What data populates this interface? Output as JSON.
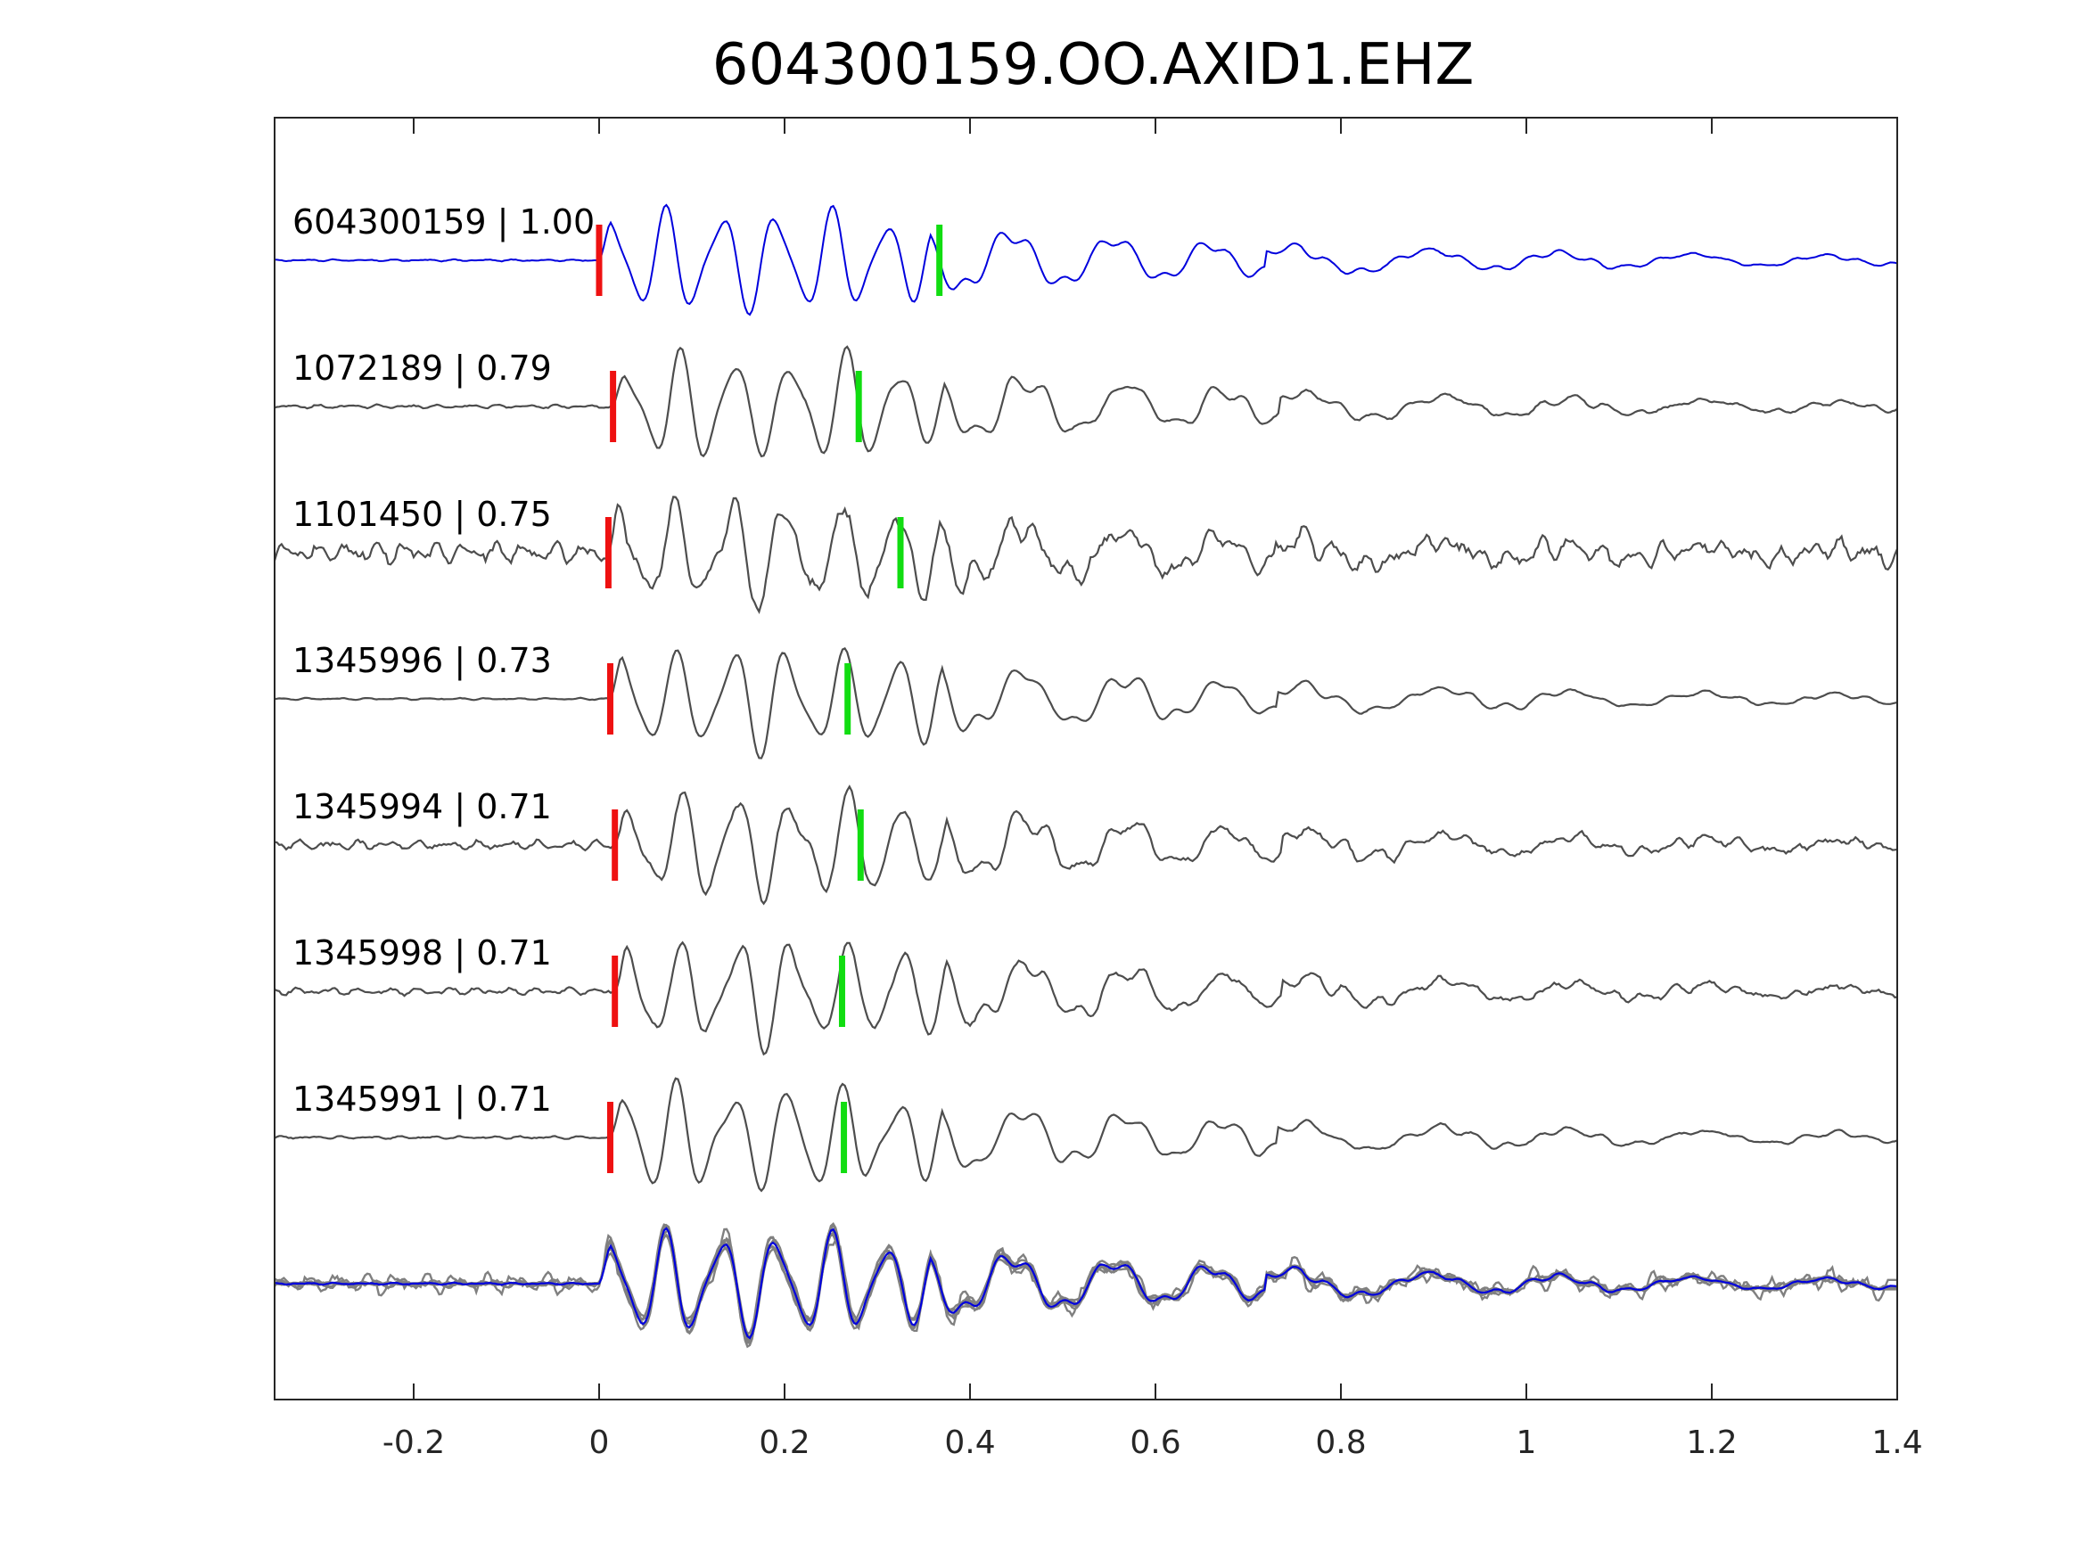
{
  "chart_data": {
    "type": "line",
    "title": "604300159.OO.AXID1.EHZ",
    "xlabel": "",
    "ylabel": "",
    "xlim": [
      -0.35,
      1.4
    ],
    "x_ticks": [
      -0.2,
      0,
      0.2,
      0.4,
      0.6,
      0.8,
      1,
      1.2,
      1.4
    ],
    "x_tick_labels": [
      "-0.2",
      "0",
      "0.2",
      "0.4",
      "0.6",
      "0.8",
      "1",
      "1.2",
      "1.4"
    ],
    "y_ticks_visible": false,
    "grid": false,
    "legend": "none",
    "colors": {
      "template": "#0000dd",
      "match": "#4d4d4d",
      "overlay_match": "#808080",
      "p_pick": "#ee1111",
      "s_pick": "#11dd11",
      "axes": "#262626"
    },
    "series": [
      {
        "id": "604300159",
        "label": "604300159 | 1.00",
        "cc": 1.0,
        "p_pick": 0.0,
        "s_pick": 0.367,
        "noise": 0.02,
        "template": true
      },
      {
        "id": "1072189",
        "label": "1072189 | 0.79",
        "cc": 0.79,
        "p_pick": 0.015,
        "s_pick": 0.28,
        "noise": 0.04,
        "template": false
      },
      {
        "id": "1101450",
        "label": "1101450 | 0.75",
        "cc": 0.75,
        "p_pick": 0.01,
        "s_pick": 0.325,
        "noise": 0.22,
        "template": false
      },
      {
        "id": "1345996",
        "label": "1345996 | 0.73",
        "cc": 0.73,
        "p_pick": 0.012,
        "s_pick": 0.268,
        "noise": 0.02,
        "template": false
      },
      {
        "id": "1345994",
        "label": "1345994 | 0.71",
        "cc": 0.71,
        "p_pick": 0.017,
        "s_pick": 0.282,
        "noise": 0.1,
        "template": false
      },
      {
        "id": "1345998",
        "label": "1345998 | 0.71",
        "cc": 0.71,
        "p_pick": 0.017,
        "s_pick": 0.262,
        "noise": 0.08,
        "template": false
      },
      {
        "id": "1345991",
        "label": "1345991 | 0.71",
        "cc": 0.71,
        "p_pick": 0.012,
        "s_pick": 0.264,
        "noise": 0.03,
        "template": false
      }
    ]
  }
}
